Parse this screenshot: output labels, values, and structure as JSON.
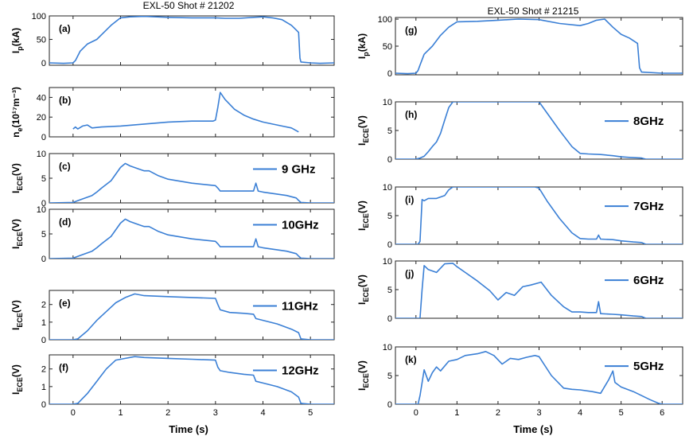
{
  "figure": {
    "left_title": "EXL-50 Shot # 21202",
    "right_title": "EXL-50 Shot # 21215",
    "xlabel": "Time (s)"
  },
  "chart_data": [
    {
      "id": "a",
      "type": "line",
      "column": "left",
      "ylabel_main": "I",
      "ylabel_sub": "p",
      "ylabel_tail": "(kA)",
      "xlim": [
        -0.5,
        5.5
      ],
      "ylim": [
        -5,
        100
      ],
      "yticks": [
        0,
        50,
        100
      ],
      "xticks": [
        0,
        1,
        2,
        3,
        4,
        5
      ],
      "legend": "",
      "series": [
        {
          "x": [
            -0.5,
            -0.2,
            0,
            0.05,
            0.15,
            0.3,
            0.5,
            0.8,
            1.0,
            1.2,
            1.5,
            2.0,
            2.5,
            3.0,
            3.2,
            3.5,
            3.8,
            4.0,
            4.2,
            4.4,
            4.6,
            4.7,
            4.75,
            4.78,
            4.8,
            5.0,
            5.2,
            5.5
          ],
          "y": [
            0,
            -1,
            0,
            5,
            25,
            40,
            50,
            80,
            96,
            98,
            99,
            97,
            96,
            96,
            95,
            95,
            97,
            98,
            96,
            92,
            80,
            70,
            65,
            10,
            2,
            0,
            -1,
            0
          ]
        }
      ]
    },
    {
      "id": "b",
      "type": "line",
      "column": "left",
      "ylabel_main": "n",
      "ylabel_sub": "e",
      "ylabel_tail": "(10¹⁷m⁻³)",
      "xlim": [
        -0.5,
        5.5
      ],
      "ylim": [
        0,
        50
      ],
      "yticks": [
        0,
        20,
        40
      ],
      "xticks": [
        0,
        1,
        2,
        3,
        4,
        5
      ],
      "legend": "",
      "series": [
        {
          "x": [
            0,
            0.05,
            0.1,
            0.2,
            0.3,
            0.4,
            0.6,
            1.0,
            1.5,
            2.0,
            2.5,
            2.95,
            3.0,
            3.05,
            3.1,
            3.2,
            3.4,
            3.6,
            3.8,
            4.0,
            4.2,
            4.4,
            4.6,
            4.75
          ],
          "y": [
            8,
            10,
            8,
            11,
            12,
            9,
            10,
            11,
            13,
            15,
            16,
            16,
            17,
            30,
            45,
            38,
            28,
            22,
            18,
            15,
            13,
            11,
            9,
            5
          ]
        }
      ]
    },
    {
      "id": "c",
      "type": "line",
      "column": "left",
      "ylabel_main": "I",
      "ylabel_sub": "ECE",
      "ylabel_tail": "(V)",
      "xlim": [
        -0.5,
        5.5
      ],
      "ylim": [
        0,
        10
      ],
      "yticks": [
        0,
        5,
        10
      ],
      "xticks": [
        0,
        1,
        2,
        3,
        4,
        5
      ],
      "legend": "9 GHz",
      "series": [
        {
          "x": [
            -0.5,
            0,
            0.2,
            0.4,
            0.5,
            0.6,
            0.8,
            1.0,
            1.1,
            1.2,
            1.4,
            1.5,
            1.6,
            1.8,
            2.0,
            2.5,
            3.0,
            3.05,
            3.1,
            3.5,
            3.8,
            3.85,
            3.9,
            4.0,
            4.5,
            4.7,
            4.75,
            4.8,
            5.0,
            5.5
          ],
          "y": [
            0,
            0.1,
            0.8,
            1.5,
            2.2,
            3.0,
            4.5,
            7.2,
            8.0,
            7.5,
            6.8,
            6.5,
            6.5,
            5.5,
            4.8,
            4.0,
            3.5,
            3.0,
            2.4,
            2.4,
            2.4,
            4.0,
            2.4,
            2.2,
            1.5,
            1.0,
            0.5,
            0.1,
            0,
            0
          ]
        }
      ]
    },
    {
      "id": "d",
      "type": "line",
      "column": "left",
      "ylabel_main": "I",
      "ylabel_sub": "ECE",
      "ylabel_tail": "(V)",
      "xlim": [
        -0.5,
        5.5
      ],
      "ylim": [
        0,
        10
      ],
      "yticks": [
        0,
        5,
        10
      ],
      "xticks": [
        0,
        1,
        2,
        3,
        4,
        5
      ],
      "legend": "10GHz",
      "series": [
        {
          "x": [
            -0.5,
            0,
            0.2,
            0.4,
            0.5,
            0.6,
            0.8,
            1.0,
            1.1,
            1.2,
            1.4,
            1.5,
            1.6,
            1.8,
            2.0,
            2.5,
            3.0,
            3.05,
            3.1,
            3.5,
            3.8,
            3.85,
            3.9,
            4.0,
            4.5,
            4.7,
            4.75,
            4.8,
            5.0,
            5.5
          ],
          "y": [
            0,
            0.1,
            0.8,
            1.5,
            2.2,
            3.0,
            4.5,
            7.2,
            8.0,
            7.5,
            6.8,
            6.5,
            6.5,
            5.5,
            4.8,
            4.0,
            3.5,
            3.0,
            2.4,
            2.4,
            2.4,
            4.0,
            2.4,
            2.2,
            1.5,
            1.0,
            0.5,
            0.1,
            0,
            0
          ]
        }
      ]
    },
    {
      "id": "e",
      "type": "line",
      "column": "left",
      "ylabel_main": "I",
      "ylabel_sub": "ECE",
      "ylabel_tail": "(V)",
      "xlim": [
        -0.5,
        5.5
      ],
      "ylim": [
        0,
        2.8
      ],
      "yticks": [
        0,
        1,
        2
      ],
      "xticks": [
        0,
        1,
        2,
        3,
        4,
        5
      ],
      "legend": "11GHz",
      "series": [
        {
          "x": [
            -0.5,
            0,
            0.1,
            0.3,
            0.5,
            0.7,
            0.9,
            1.1,
            1.3,
            1.5,
            2.0,
            2.5,
            3.0,
            3.05,
            3.1,
            3.3,
            3.6,
            3.8,
            3.85,
            4.0,
            4.3,
            4.6,
            4.75,
            4.8,
            5.0,
            5.5
          ],
          "y": [
            0,
            0,
            0.05,
            0.5,
            1.1,
            1.6,
            2.1,
            2.4,
            2.6,
            2.5,
            2.45,
            2.4,
            2.35,
            2.0,
            1.7,
            1.55,
            1.5,
            1.45,
            1.2,
            1.1,
            0.9,
            0.6,
            0.4,
            0.05,
            0,
            0
          ]
        }
      ]
    },
    {
      "id": "f",
      "type": "line",
      "column": "left",
      "ylabel_main": "I",
      "ylabel_sub": "ECE",
      "ylabel_tail": "(V)",
      "xlim": [
        -0.5,
        5.5
      ],
      "ylim": [
        0,
        2.8
      ],
      "yticks": [
        0,
        1,
        2
      ],
      "xticks": [
        0,
        1,
        2,
        3,
        4,
        5
      ],
      "legend": "12GHz",
      "series": [
        {
          "x": [
            -0.5,
            0,
            0.1,
            0.3,
            0.5,
            0.7,
            0.9,
            1.1,
            1.3,
            1.5,
            2.0,
            2.5,
            3.0,
            3.05,
            3.1,
            3.3,
            3.6,
            3.8,
            3.85,
            4.0,
            4.3,
            4.6,
            4.75,
            4.8,
            5.0,
            5.5
          ],
          "y": [
            0,
            0,
            0.05,
            0.6,
            1.3,
            2.0,
            2.5,
            2.6,
            2.7,
            2.65,
            2.6,
            2.55,
            2.5,
            2.1,
            1.9,
            1.8,
            1.7,
            1.65,
            1.3,
            1.2,
            1.0,
            0.7,
            0.4,
            0.05,
            0,
            0
          ]
        }
      ]
    },
    {
      "id": "g",
      "type": "line",
      "column": "right",
      "ylabel_main": "I",
      "ylabel_sub": "p",
      "ylabel_tail": "(kA)",
      "xlim": [
        -0.5,
        6.5
      ],
      "ylim": [
        -3,
        103
      ],
      "yticks": [
        0,
        50,
        100
      ],
      "xticks": [
        0,
        1,
        2,
        3,
        4,
        5,
        6
      ],
      "legend": "",
      "series": [
        {
          "x": [
            -0.5,
            -0.2,
            0,
            0.05,
            0.1,
            0.2,
            0.4,
            0.6,
            0.8,
            1.0,
            1.5,
            2.0,
            2.5,
            3.0,
            3.5,
            4.0,
            4.2,
            4.4,
            4.6,
            4.8,
            5.0,
            5.2,
            5.4,
            5.45,
            5.5,
            6.0,
            6.5
          ],
          "y": [
            0,
            -1,
            0,
            5,
            15,
            35,
            50,
            70,
            85,
            95,
            96,
            98,
            100,
            99,
            92,
            88,
            92,
            98,
            100,
            85,
            72,
            65,
            55,
            10,
            2,
            0,
            0
          ]
        }
      ]
    },
    {
      "id": "h",
      "type": "line",
      "column": "right",
      "ylabel_main": "I",
      "ylabel_sub": "ECE",
      "ylabel_tail": "(V)",
      "xlim": [
        -0.5,
        6.5
      ],
      "ylim": [
        0,
        10
      ],
      "yticks": [
        0,
        5,
        10
      ],
      "xticks": [
        0,
        1,
        2,
        3,
        4,
        5,
        6
      ],
      "legend": "8GHz",
      "series": [
        {
          "x": [
            -0.5,
            0,
            0.1,
            0.2,
            0.3,
            0.4,
            0.5,
            0.6,
            0.7,
            0.8,
            0.9,
            2.9,
            3.0,
            3.2,
            3.5,
            3.8,
            4.0,
            4.2,
            4.5,
            4.8,
            5.0,
            5.2,
            5.5,
            5.6,
            6.5
          ],
          "y": [
            0,
            0,
            0.2,
            0.5,
            1.3,
            2.2,
            3.0,
            4.5,
            6.8,
            9.0,
            10,
            10,
            10,
            8.0,
            5.0,
            2.2,
            1.0,
            0.9,
            0.8,
            0.6,
            0.4,
            0.3,
            0.2,
            0,
            0
          ]
        }
      ]
    },
    {
      "id": "i",
      "type": "line",
      "column": "right",
      "ylabel_main": "I",
      "ylabel_sub": "ECE",
      "ylabel_tail": "(V)",
      "xlim": [
        -0.5,
        6.5
      ],
      "ylim": [
        0,
        10
      ],
      "yticks": [
        0,
        5,
        10
      ],
      "xticks": [
        0,
        1,
        2,
        3,
        4,
        5,
        6
      ],
      "legend": "7GHz",
      "series": [
        {
          "x": [
            -0.5,
            0,
            0.05,
            0.1,
            0.15,
            0.2,
            0.3,
            0.5,
            0.7,
            0.8,
            0.9,
            2.9,
            3.0,
            3.2,
            3.5,
            3.8,
            4.0,
            4.2,
            4.4,
            4.45,
            4.5,
            4.8,
            5.0,
            5.3,
            5.5,
            5.6,
            6.5
          ],
          "y": [
            0,
            0,
            0,
            0.5,
            7.8,
            7.6,
            8.0,
            8.0,
            8.5,
            9.5,
            10,
            10,
            9.8,
            7.5,
            4.5,
            2.0,
            1.0,
            0.9,
            0.9,
            1.6,
            0.9,
            0.8,
            0.6,
            0.4,
            0.3,
            0,
            0
          ]
        }
      ]
    },
    {
      "id": "j",
      "type": "line",
      "column": "right",
      "ylabel_main": "I",
      "ylabel_sub": "ECE",
      "ylabel_tail": "(V)",
      "xlim": [
        -0.5,
        6.5
      ],
      "ylim": [
        0,
        10
      ],
      "yticks": [
        0,
        5,
        10
      ],
      "xticks": [
        0,
        1,
        2,
        3,
        4,
        5,
        6
      ],
      "legend": "6GHz",
      "series": [
        {
          "x": [
            -0.5,
            0,
            0.1,
            0.15,
            0.2,
            0.3,
            0.5,
            0.7,
            0.9,
            1.0,
            1.2,
            1.5,
            1.8,
            2.0,
            2.2,
            2.4,
            2.6,
            2.8,
            3.0,
            3.05,
            3.3,
            3.6,
            3.8,
            4.0,
            4.2,
            4.4,
            4.45,
            4.5,
            4.8,
            5.0,
            5.3,
            5.5,
            5.6,
            6.5
          ],
          "y": [
            0,
            0,
            0,
            5.0,
            9.2,
            8.5,
            8.0,
            9.5,
            9.6,
            9.0,
            8.0,
            6.5,
            4.8,
            3.2,
            4.5,
            4.0,
            5.5,
            5.8,
            6.2,
            6.3,
            4.0,
            2.0,
            1.1,
            1.1,
            1.0,
            1.0,
            2.9,
            0.8,
            0.7,
            0.6,
            0.4,
            0.3,
            0,
            0
          ]
        }
      ]
    },
    {
      "id": "k",
      "type": "line",
      "column": "right",
      "ylabel_main": "I",
      "ylabel_sub": "ECE",
      "ylabel_tail": "(V)",
      "xlim": [
        -0.5,
        6.5
      ],
      "ylim": [
        0,
        10
      ],
      "yticks": [
        0,
        5,
        10
      ],
      "xticks": [
        0,
        1,
        2,
        3,
        4,
        5,
        6
      ],
      "legend": "5GHz",
      "series": [
        {
          "x": [
            -0.5,
            0,
            0.05,
            0.1,
            0.2,
            0.3,
            0.4,
            0.5,
            0.6,
            0.8,
            1.0,
            1.2,
            1.5,
            1.7,
            1.9,
            2.1,
            2.3,
            2.5,
            2.7,
            2.9,
            3.0,
            3.3,
            3.6,
            3.8,
            4.0,
            4.3,
            4.5,
            4.7,
            4.8,
            4.85,
            5.0,
            5.3,
            5.5,
            5.7,
            5.9,
            6.0,
            6.5
          ],
          "y": [
            0,
            0,
            0,
            1.5,
            6.0,
            4.0,
            5.5,
            6.5,
            5.8,
            7.5,
            7.8,
            8.5,
            8.8,
            9.2,
            8.5,
            7.0,
            8.0,
            7.8,
            8.2,
            8.5,
            8.3,
            5.0,
            2.8,
            2.6,
            2.5,
            2.2,
            1.9,
            4.3,
            5.8,
            3.8,
            3.0,
            2.2,
            1.5,
            0.8,
            0.2,
            0,
            0
          ]
        }
      ]
    }
  ]
}
